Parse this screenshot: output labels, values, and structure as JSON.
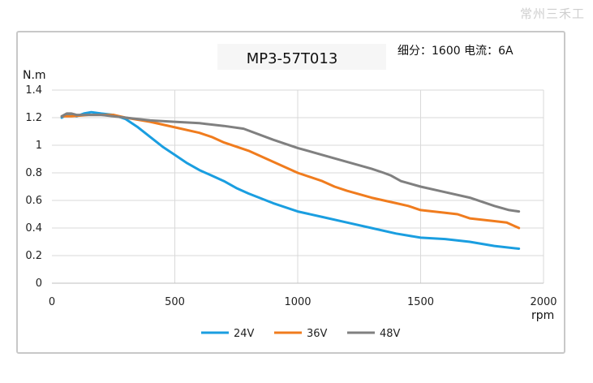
{
  "watermark": "常州三禾工",
  "chart_data": {
    "type": "line",
    "title": "MP3-57T013",
    "subtitle": "细分：1600 电流：6A",
    "xlabel": "rpm",
    "ylabel": "N.m",
    "xlim": [
      0,
      2000
    ],
    "ylim": [
      0,
      1.4
    ],
    "xticks": [
      0,
      500,
      1000,
      1500,
      2000
    ],
    "yticks": [
      0,
      0.2,
      0.4,
      0.6,
      0.8,
      1,
      1.2,
      1.4
    ],
    "ytick_labels": [
      "0",
      "0.2",
      "0.4",
      "0.6",
      "0.8",
      "1",
      "1.2",
      "1.4"
    ],
    "grid": "vertical and horizontal",
    "legend_position": "bottom",
    "series": [
      {
        "name": "24V",
        "color": "#1a9ee0",
        "x": [
          40,
          60,
          80,
          100,
          130,
          160,
          200,
          250,
          300,
          350,
          400,
          450,
          500,
          550,
          600,
          650,
          700,
          750,
          800,
          900,
          1000,
          1100,
          1200,
          1300,
          1400,
          1500,
          1600,
          1700,
          1800,
          1900
        ],
        "y": [
          1.2,
          1.22,
          1.22,
          1.21,
          1.23,
          1.24,
          1.23,
          1.22,
          1.19,
          1.13,
          1.06,
          0.99,
          0.93,
          0.87,
          0.82,
          0.78,
          0.74,
          0.69,
          0.65,
          0.58,
          0.52,
          0.48,
          0.44,
          0.4,
          0.36,
          0.33,
          0.32,
          0.3,
          0.27,
          0.25
        ]
      },
      {
        "name": "36V",
        "color": "#f07c1e",
        "x": [
          40,
          80,
          150,
          250,
          300,
          400,
          500,
          600,
          650,
          700,
          800,
          900,
          1000,
          1100,
          1150,
          1200,
          1300,
          1400,
          1450,
          1500,
          1600,
          1650,
          1700,
          1800,
          1850,
          1900
        ],
        "y": [
          1.21,
          1.21,
          1.22,
          1.22,
          1.2,
          1.17,
          1.13,
          1.09,
          1.06,
          1.02,
          0.96,
          0.88,
          0.8,
          0.74,
          0.7,
          0.67,
          0.62,
          0.58,
          0.56,
          0.53,
          0.51,
          0.5,
          0.47,
          0.45,
          0.44,
          0.4
        ]
      },
      {
        "name": "48V",
        "color": "#808080",
        "x": [
          40,
          60,
          80,
          100,
          200,
          300,
          400,
          500,
          600,
          700,
          780,
          900,
          1000,
          1100,
          1200,
          1300,
          1350,
          1380,
          1420,
          1500,
          1600,
          1700,
          1800,
          1860,
          1900
        ],
        "y": [
          1.21,
          1.23,
          1.23,
          1.22,
          1.22,
          1.2,
          1.18,
          1.17,
          1.16,
          1.14,
          1.12,
          1.04,
          0.98,
          0.93,
          0.88,
          0.83,
          0.8,
          0.78,
          0.74,
          0.7,
          0.66,
          0.62,
          0.56,
          0.53,
          0.52
        ]
      }
    ]
  }
}
